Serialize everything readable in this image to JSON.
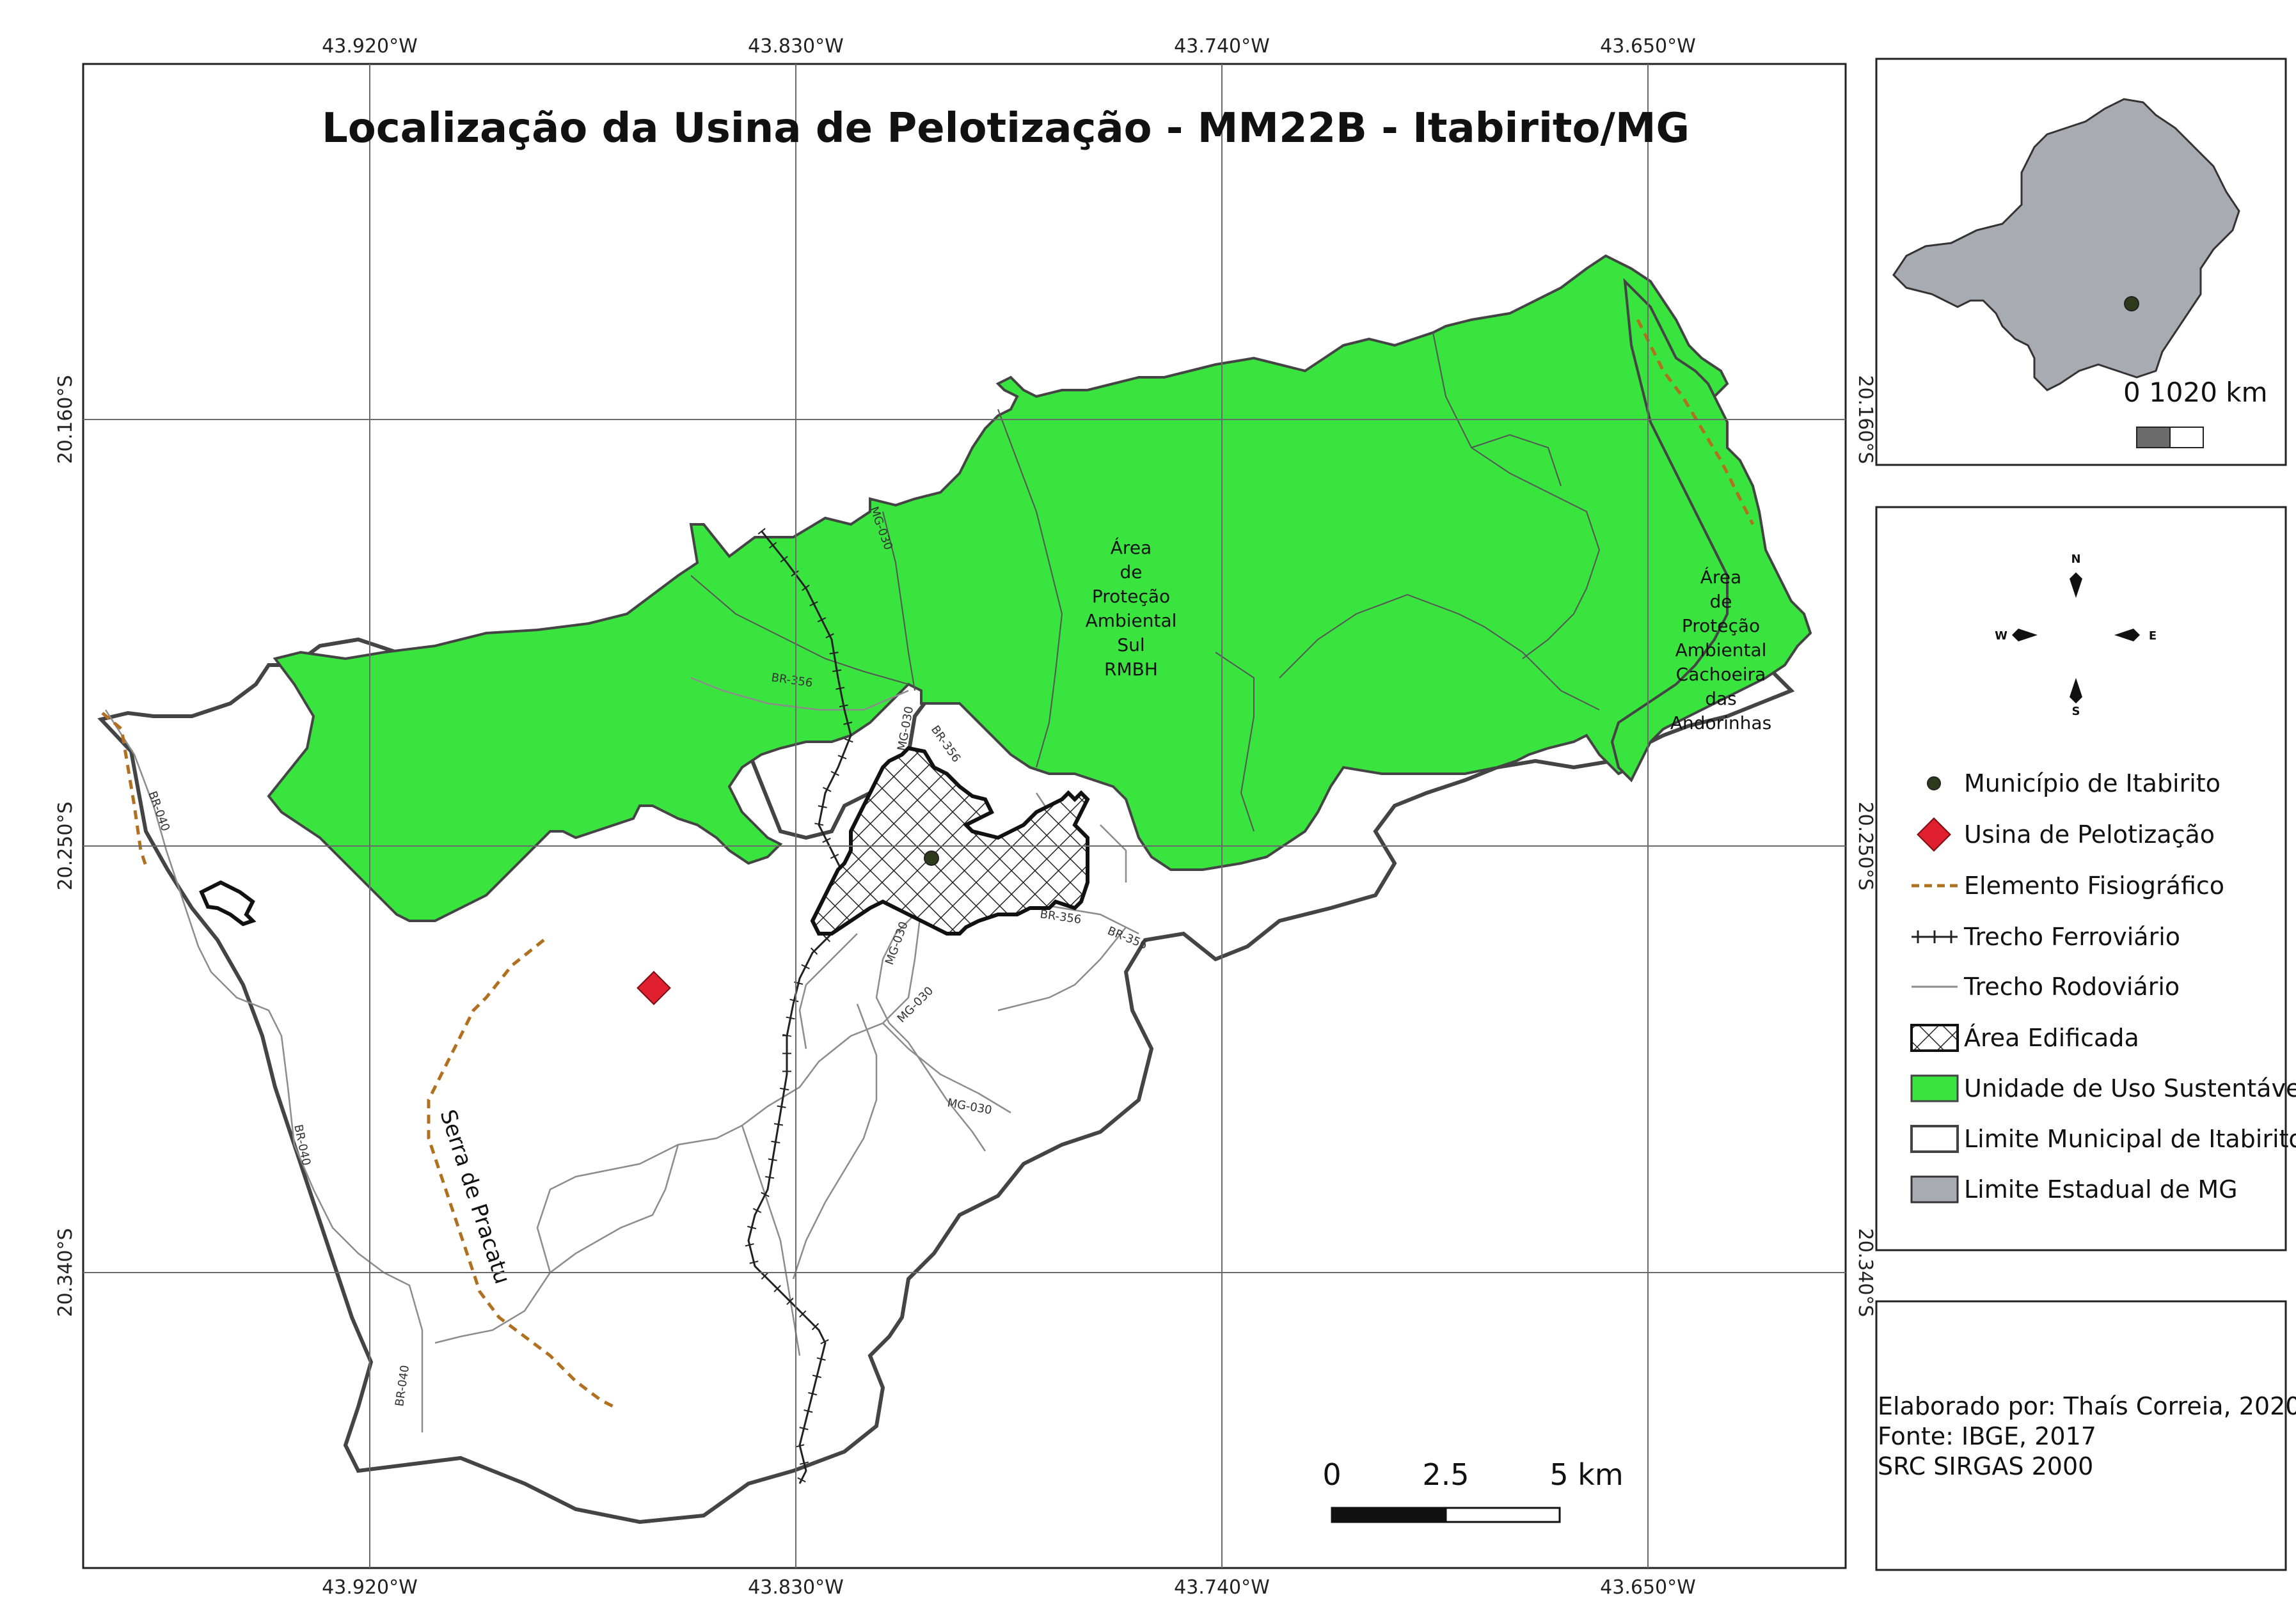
{
  "map": {
    "title": "Localização da Usina de Pelotização - MM22B - Itabirito/MG",
    "grid": {
      "lon_labels": [
        "43.920°W",
        "43.830°W",
        "43.740°W",
        "43.650°W"
      ],
      "lat_labels": [
        "20.160°S",
        "20.250°S",
        "20.340°S"
      ]
    },
    "labels": {
      "apa_sul": [
        "Área",
        "de",
        "Proteção",
        "Ambiental",
        "Sul",
        "RMBH"
      ],
      "apa_cachoeira": [
        "Área",
        "de",
        "Proteção",
        "Ambiental",
        "Cachoeira",
        "das",
        "Andorinhas"
      ],
      "serra": "Serra de Pracatu",
      "roads": {
        "br040": "BR-040",
        "br356": "BR-356",
        "mg030": "MG-030"
      }
    },
    "scale_bar": {
      "ticks": [
        "0",
        "2.5",
        "5 km"
      ]
    },
    "colors": {
      "green": "#39e43f",
      "hatch_line": "#222222",
      "boundary": "#444444",
      "road": "#8c8c8c",
      "fisio": "#b07020",
      "usina": "#e0202e",
      "state": "#a8abb1",
      "dot": "#2f3a1c"
    }
  },
  "inset": {
    "scale_label": "0 1020 km"
  },
  "legend": {
    "compass": {
      "n": "N",
      "s": "S",
      "e": "E",
      "w": "W"
    },
    "items": [
      {
        "label": "Município de Itabirito",
        "symbol": "dot"
      },
      {
        "label": "Usina de Pelotização",
        "symbol": "diamond"
      },
      {
        "label": "Elemento Fisiográfico",
        "symbol": "dashed"
      },
      {
        "label": "Trecho Ferroviário",
        "symbol": "rail"
      },
      {
        "label": "Trecho Rodoviário",
        "symbol": "road"
      },
      {
        "label": "Área Edificada",
        "symbol": "hatch"
      },
      {
        "label": "Unidade de Uso Sustentável",
        "symbol": "green"
      },
      {
        "label": "Limite Municipal de Itabirito",
        "symbol": "white"
      },
      {
        "label": "Limite Estadual de MG",
        "symbol": "grey"
      }
    ]
  },
  "credits": {
    "line1": "Elaborado por: Thaís Correia, 2020",
    "line2": "Fonte: IBGE, 2017",
    "line3": "SRC SIRGAS 2000"
  }
}
